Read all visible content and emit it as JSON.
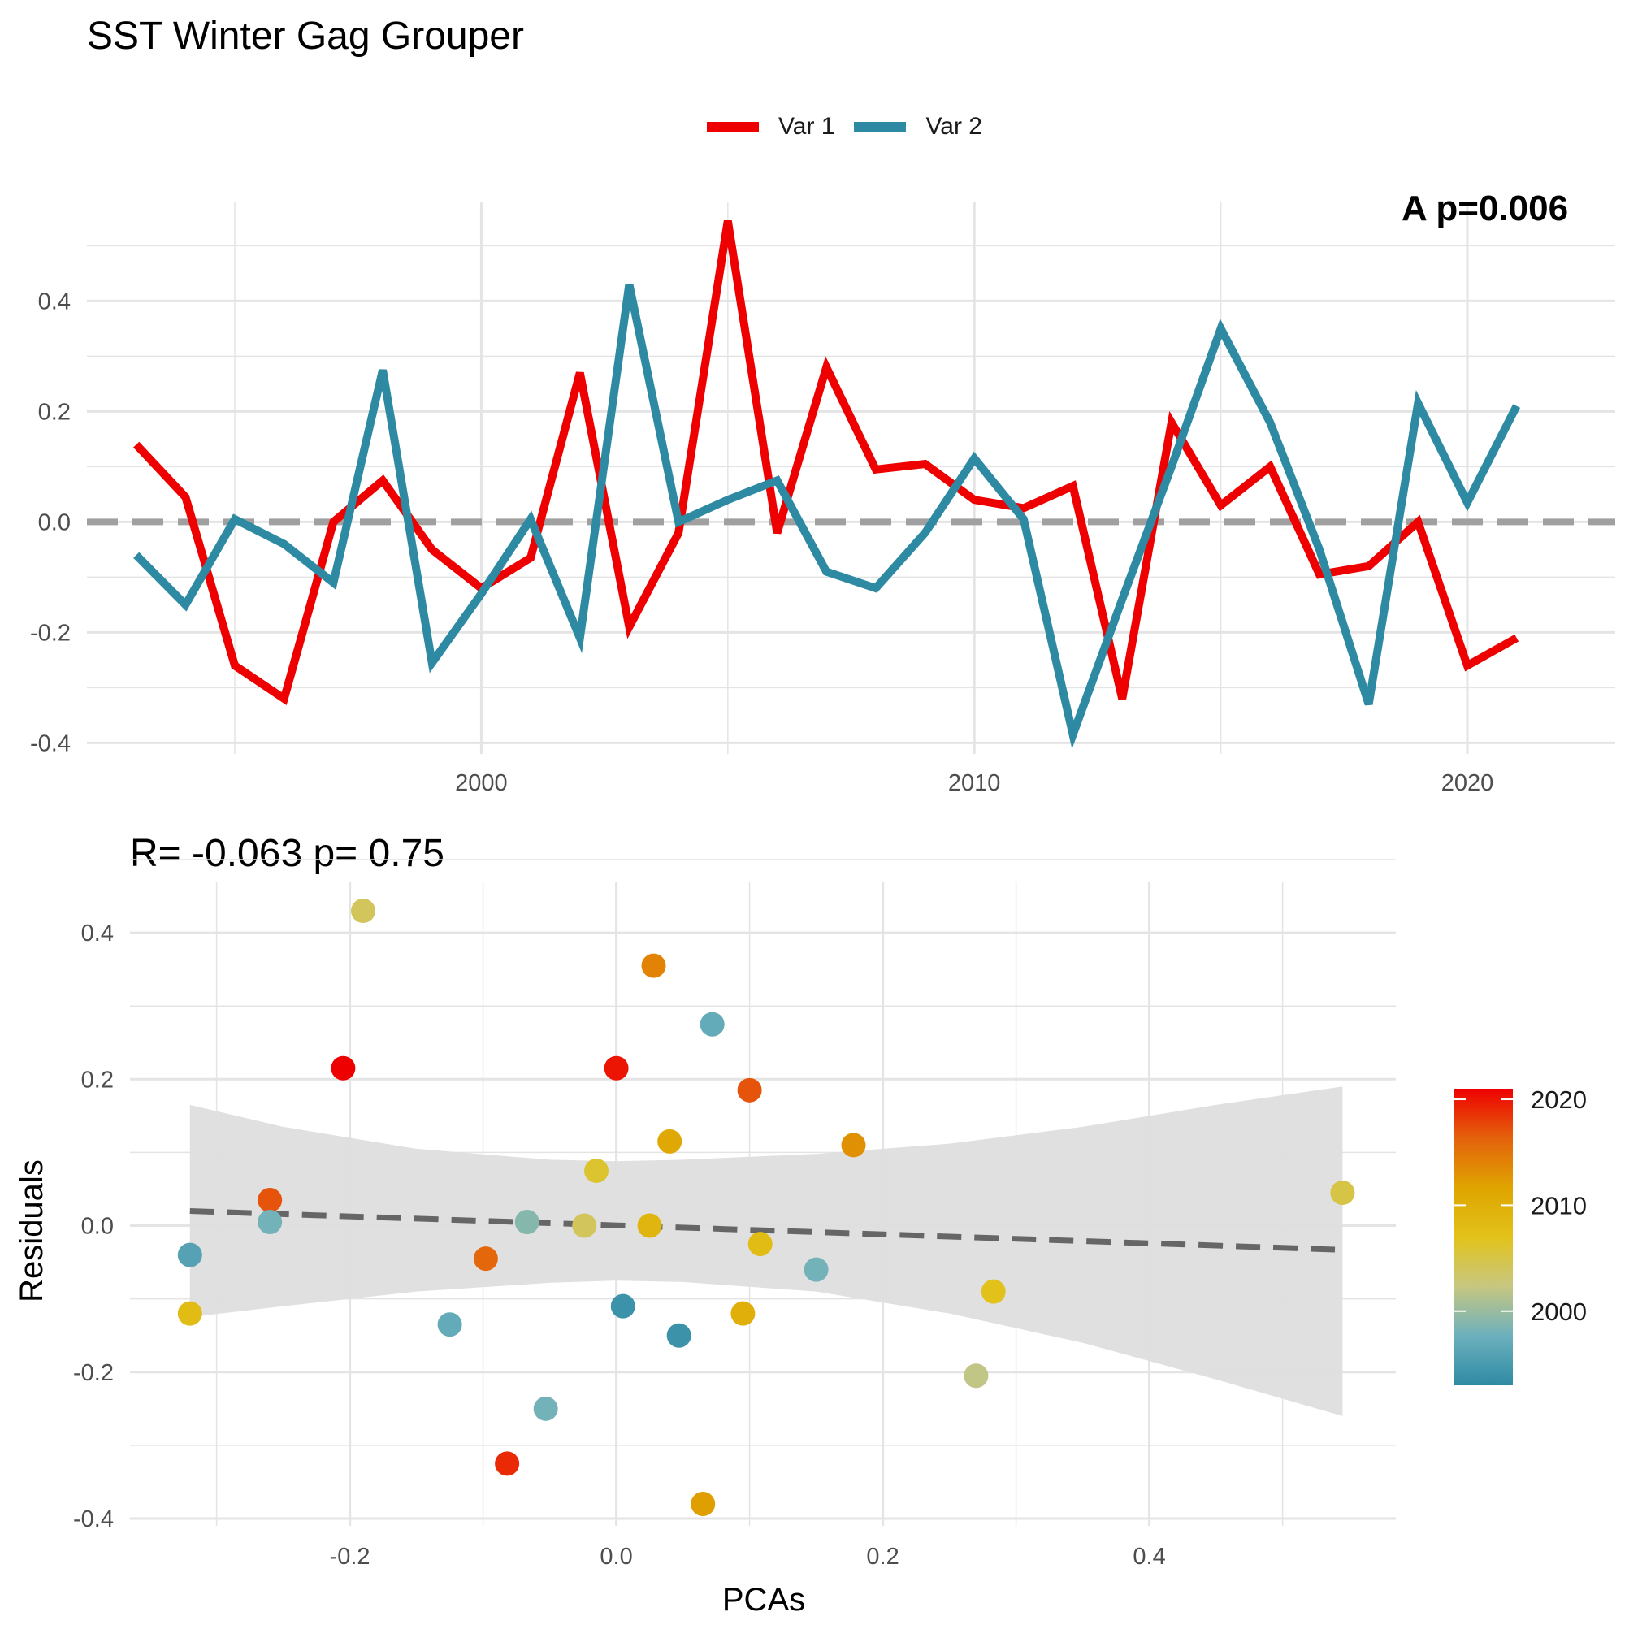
{
  "title": "SST Winter Gag Grouper",
  "panel_label": "A  p=0.006",
  "stat_label": "R= -0.063  p= 0.75",
  "colors": {
    "var1": "#ee0000",
    "var2": "#2e8aa3",
    "zero_line": "#a0a0a0",
    "ribbon": "#dedede",
    "fit_line": "#666666",
    "grid": "#e4e4e4"
  },
  "chart_data": [
    {
      "type": "line",
      "title": "SST Winter Gag Grouper",
      "xlabel": "",
      "ylabel": "",
      "x": [
        1993,
        1994,
        1995,
        1996,
        1997,
        1998,
        1999,
        2000,
        2001,
        2002,
        2003,
        2004,
        2005,
        2006,
        2007,
        2008,
        2009,
        2010,
        2011,
        2012,
        2013,
        2014,
        2015,
        2016,
        2017,
        2018,
        2019,
        2020,
        2021
      ],
      "xlim": [
        1992,
        2023
      ],
      "ylim": [
        -0.42,
        0.58
      ],
      "xticks": [
        2000,
        2010,
        2020
      ],
      "yticks": [
        -0.4,
        -0.2,
        0.0,
        0.2,
        0.4
      ],
      "ytick_labels": [
        "-0.4",
        "-0.2",
        "0.0",
        "0.2",
        "0.4"
      ],
      "grid": true,
      "legend_position": "top",
      "reference_line": 0,
      "series": [
        {
          "name": "Var 1",
          "values": [
            0.14,
            0.045,
            -0.26,
            -0.32,
            0.0,
            0.075,
            -0.05,
            -0.12,
            -0.065,
            0.27,
            -0.19,
            -0.02,
            0.545,
            -0.02,
            0.28,
            0.095,
            0.105,
            0.04,
            0.025,
            0.065,
            -0.32,
            0.18,
            0.03,
            0.1,
            -0.095,
            -0.08,
            0.0,
            -0.26,
            -0.21
          ]
        },
        {
          "name": "Var 2",
          "values": [
            -0.06,
            -0.15,
            0.005,
            -0.04,
            -0.11,
            0.275,
            -0.255,
            -0.13,
            0.005,
            -0.21,
            0.43,
            0.0,
            0.04,
            0.075,
            -0.09,
            -0.12,
            -0.02,
            0.115,
            0.005,
            -0.385,
            -0.14,
            0.1,
            0.35,
            0.18,
            -0.05,
            -0.33,
            0.215,
            0.035,
            0.21
          ]
        }
      ]
    },
    {
      "type": "scatter",
      "title": "R= -0.063  p= 0.75",
      "xlabel": "PCAs",
      "ylabel": "Residuals",
      "xlim": [
        -0.365,
        0.585
      ],
      "ylim": [
        -0.41,
        0.47
      ],
      "xticks": [
        -0.2,
        0.0,
        0.2,
        0.4
      ],
      "xtick_labels": [
        "-0.2",
        "0.0",
        "0.2",
        "0.4"
      ],
      "yticks": [
        -0.4,
        -0.2,
        0.0,
        0.2,
        0.4
      ],
      "ytick_labels": [
        "-0.4",
        "-0.2",
        "0.0",
        "0.2",
        "0.4"
      ],
      "grid": true,
      "points": [
        {
          "x": -0.32,
          "y": -0.04,
          "year": 1996
        },
        {
          "x": -0.32,
          "y": -0.12,
          "year": 2008
        },
        {
          "x": -0.26,
          "y": 0.035,
          "year": 2017
        },
        {
          "x": -0.26,
          "y": 0.005,
          "year": 1998
        },
        {
          "x": -0.205,
          "y": 0.215,
          "year": 2021
        },
        {
          "x": -0.19,
          "y": 0.43,
          "year": 2004
        },
        {
          "x": -0.125,
          "y": -0.135,
          "year": 1997
        },
        {
          "x": -0.098,
          "y": -0.045,
          "year": 2016
        },
        {
          "x": -0.082,
          "y": -0.325,
          "year": 2019
        },
        {
          "x": -0.067,
          "y": 0.005,
          "year": 1999
        },
        {
          "x": -0.053,
          "y": -0.25,
          "year": 1998
        },
        {
          "x": -0.024,
          "y": 0.0,
          "year": 2004
        },
        {
          "x": -0.015,
          "y": 0.075,
          "year": 2006
        },
        {
          "x": 0.0,
          "y": 0.215,
          "year": 2020
        },
        {
          "x": 0.005,
          "y": -0.11,
          "year": 1994
        },
        {
          "x": 0.025,
          "y": 0.0,
          "year": 2009
        },
        {
          "x": 0.028,
          "y": 0.355,
          "year": 2014
        },
        {
          "x": 0.04,
          "y": 0.115,
          "year": 2011
        },
        {
          "x": 0.047,
          "y": -0.15,
          "year": 1994
        },
        {
          "x": 0.065,
          "y": -0.38,
          "year": 2012
        },
        {
          "x": 0.072,
          "y": 0.275,
          "year": 1997
        },
        {
          "x": 0.095,
          "y": -0.12,
          "year": 2010
        },
        {
          "x": 0.1,
          "y": 0.185,
          "year": 2017
        },
        {
          "x": 0.108,
          "y": -0.025,
          "year": 2008
        },
        {
          "x": 0.15,
          "y": -0.06,
          "year": 1998
        },
        {
          "x": 0.178,
          "y": 0.11,
          "year": 2013
        },
        {
          "x": 0.27,
          "y": -0.205,
          "year": 2002
        },
        {
          "x": 0.283,
          "y": -0.09,
          "year": 2007
        },
        {
          "x": 0.545,
          "y": 0.045,
          "year": 2005
        }
      ],
      "fit_line": {
        "x": [
          -0.32,
          0.545
        ],
        "y": [
          0.02,
          -0.033
        ]
      },
      "ribbon": {
        "x": [
          -0.32,
          -0.25,
          -0.15,
          -0.05,
          0.0,
          0.05,
          0.15,
          0.25,
          0.35,
          0.45,
          0.545
        ],
        "lower": [
          -0.125,
          -0.11,
          -0.09,
          -0.078,
          -0.075,
          -0.077,
          -0.09,
          -0.12,
          -0.16,
          -0.21,
          -0.26
        ],
        "upper": [
          0.165,
          0.135,
          0.105,
          0.09,
          0.088,
          0.09,
          0.098,
          0.112,
          0.135,
          0.165,
          0.19
        ]
      },
      "colorbar": {
        "ticks": [
          2000,
          2010,
          2020
        ],
        "tick_labels": [
          "2000",
          "2010",
          "2020"
        ],
        "range": [
          1993,
          2021
        ],
        "colors": [
          "#2e8aa3",
          "#6cb0bd",
          "#c7c781",
          "#e2c21a",
          "#dfa400",
          "#e4620c",
          "#ee0000"
        ]
      }
    }
  ]
}
